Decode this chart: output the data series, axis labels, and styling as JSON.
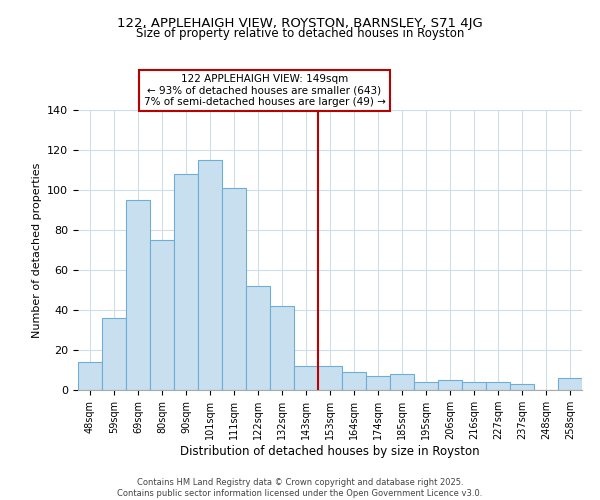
{
  "title": "122, APPLEHAIGH VIEW, ROYSTON, BARNSLEY, S71 4JG",
  "subtitle": "Size of property relative to detached houses in Royston",
  "xlabel": "Distribution of detached houses by size in Royston",
  "ylabel": "Number of detached properties",
  "bar_labels": [
    "48sqm",
    "59sqm",
    "69sqm",
    "80sqm",
    "90sqm",
    "101sqm",
    "111sqm",
    "122sqm",
    "132sqm",
    "143sqm",
    "153sqm",
    "164sqm",
    "174sqm",
    "185sqm",
    "195sqm",
    "206sqm",
    "216sqm",
    "227sqm",
    "237sqm",
    "248sqm",
    "258sqm"
  ],
  "bar_values": [
    14,
    36,
    95,
    75,
    108,
    115,
    101,
    52,
    42,
    12,
    12,
    9,
    7,
    8,
    4,
    5,
    4,
    4,
    3,
    0,
    6
  ],
  "bar_color": "#c8dff0",
  "bar_edge_color": "#6eadd4",
  "highlight_index": 10,
  "highlight_color_line": "#bb0000",
  "annotation_title": "122 APPLEHAIGH VIEW: 149sqm",
  "annotation_line1": "← 93% of detached houses are smaller (643)",
  "annotation_line2": "7% of semi-detached houses are larger (49) →",
  "annotation_box_edge": "#bb0000",
  "ylim": [
    0,
    140
  ],
  "yticks": [
    0,
    20,
    40,
    60,
    80,
    100,
    120,
    140
  ],
  "footer_line1": "Contains HM Land Registry data © Crown copyright and database right 2025.",
  "footer_line2": "Contains public sector information licensed under the Open Government Licence v3.0.",
  "background_color": "#ffffff",
  "grid_color": "#d0dce8"
}
